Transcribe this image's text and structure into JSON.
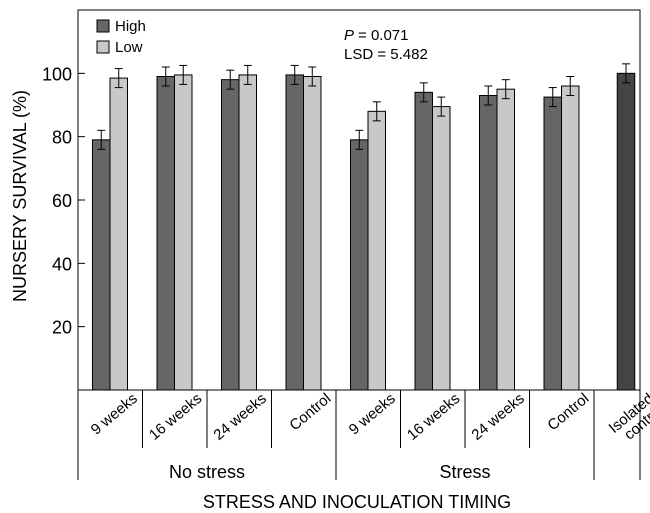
{
  "chart_data": {
    "type": "bar",
    "ylabel": "NURSERY SURVIVAL (%)",
    "xlabel": "STRESS AND INOCULATION TIMING",
    "ylim": [
      0,
      120
    ],
    "yticks": [
      20,
      40,
      60,
      80,
      100
    ],
    "grid": false,
    "legend_position": "top-left",
    "colors": {
      "High": "#666666",
      "Low": "#c8c8c8",
      "isolated": "#444444",
      "error_bar": "#000000"
    },
    "annotation": {
      "p_label": "P",
      "p_value": "= 0.071",
      "lsd": "LSD = 5.482"
    },
    "groups": [
      {
        "name": "No stress",
        "categories": [
          {
            "label": "9 weeks",
            "bars": [
              {
                "series": "High",
                "value": 79,
                "error": 3
              },
              {
                "series": "Low",
                "value": 98.5,
                "error": 3
              }
            ]
          },
          {
            "label": "16 weeks",
            "bars": [
              {
                "series": "High",
                "value": 99,
                "error": 3
              },
              {
                "series": "Low",
                "value": 99.5,
                "error": 3
              }
            ]
          },
          {
            "label": "24 weeks",
            "bars": [
              {
                "series": "High",
                "value": 98,
                "error": 3
              },
              {
                "series": "Low",
                "value": 99.5,
                "error": 3
              }
            ]
          },
          {
            "label": "Control",
            "bars": [
              {
                "series": "High",
                "value": 99.5,
                "error": 3
              },
              {
                "series": "Low",
                "value": 99,
                "error": 3
              }
            ]
          }
        ]
      },
      {
        "name": "Stress",
        "categories": [
          {
            "label": "9 weeks",
            "bars": [
              {
                "series": "High",
                "value": 79,
                "error": 3
              },
              {
                "series": "Low",
                "value": 88,
                "error": 3
              }
            ]
          },
          {
            "label": "16 weeks",
            "bars": [
              {
                "series": "High",
                "value": 94,
                "error": 3
              },
              {
                "series": "Low",
                "value": 89.5,
                "error": 3
              }
            ]
          },
          {
            "label": "24 weeks",
            "bars": [
              {
                "series": "High",
                "value": 93,
                "error": 3
              },
              {
                "series": "Low",
                "value": 95,
                "error": 3
              }
            ]
          },
          {
            "label": "Control",
            "bars": [
              {
                "series": "High",
                "value": 92.5,
                "error": 3
              },
              {
                "series": "Low",
                "value": 96,
                "error": 3
              }
            ]
          }
        ]
      },
      {
        "name": "",
        "categories": [
          {
            "label": "Isolated control",
            "bars": [
              {
                "series": "isolated",
                "value": 100,
                "error": 3
              }
            ]
          }
        ]
      }
    ],
    "series": [
      {
        "name": "High"
      },
      {
        "name": "Low"
      }
    ]
  }
}
